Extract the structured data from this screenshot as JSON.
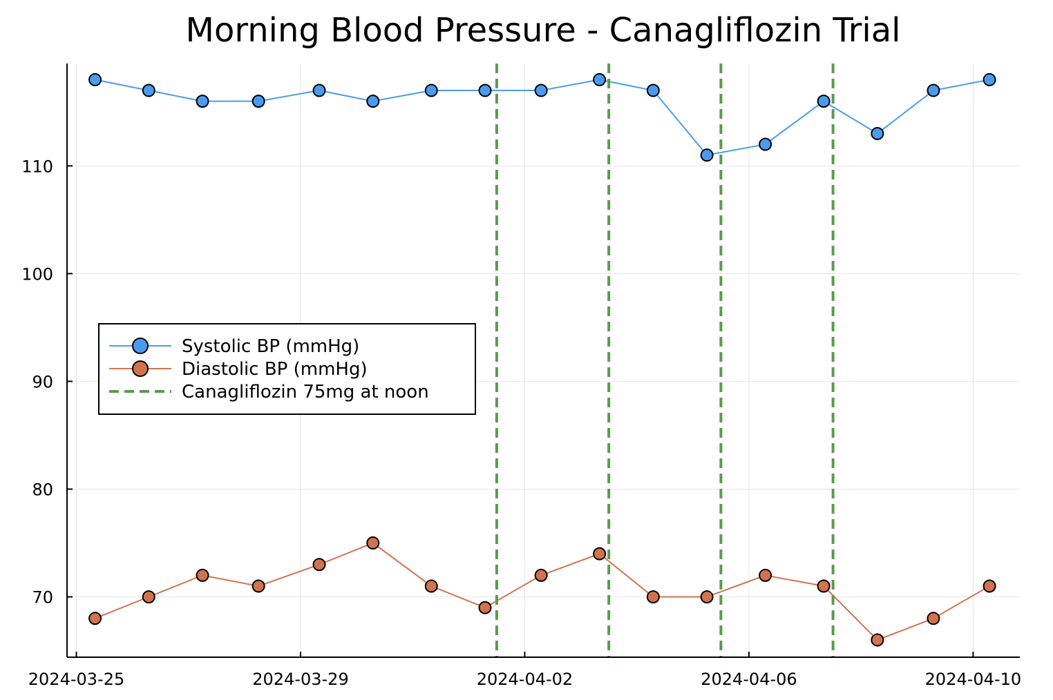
{
  "chart_data": {
    "type": "line",
    "title": "Morning Blood Pressure - Canagliflozin Trial",
    "xlabel": "",
    "ylabel": "",
    "x_type": "date",
    "x_range": [
      "2024-03-24T20:00",
      "2024-04-10T20:00"
    ],
    "x_ticks": [
      "2024-03-25",
      "2024-03-29",
      "2024-04-02",
      "2024-04-06",
      "2024-04-10"
    ],
    "y_range": [
      64.4,
      119.5
    ],
    "y_ticks": [
      70,
      80,
      90,
      100,
      110
    ],
    "grid": true,
    "legend_position": "center-left",
    "x": [
      "2024-03-25T08:00",
      "2024-03-26T07:00",
      "2024-03-27T06:00",
      "2024-03-28T06:00",
      "2024-03-29T08:00",
      "2024-03-30T07:00",
      "2024-03-31T08:00",
      "2024-04-01T07:00",
      "2024-04-02T07:00",
      "2024-04-03T08:00",
      "2024-04-04T07:00",
      "2024-04-05T06:00",
      "2024-04-06T07:00",
      "2024-04-07T08:00",
      "2024-04-08T07:00",
      "2024-04-09T07:00",
      "2024-04-10T07:00"
    ],
    "series": [
      {
        "name": "Systolic BP (mmHg)",
        "color": "#4a9bef",
        "marker": "circle",
        "values": [
          118,
          117,
          116,
          116,
          117,
          116,
          117,
          117,
          117,
          118,
          117,
          111,
          112,
          116,
          113,
          117,
          118
        ]
      },
      {
        "name": "Diastolic BP (mmHg)",
        "color": "#d2734e",
        "marker": "circle",
        "values": [
          68,
          70,
          72,
          71,
          73,
          75,
          71,
          69,
          72,
          74,
          70,
          70,
          72,
          71,
          66,
          68,
          71
        ]
      }
    ],
    "vertical_lines": {
      "name": "Canagliflozin 75mg at noon",
      "color": "#5a9a50",
      "style": "dashed",
      "x": [
        "2024-04-01T12:00",
        "2024-04-03T12:00",
        "2024-04-05T12:00",
        "2024-04-07T12:00"
      ]
    }
  }
}
